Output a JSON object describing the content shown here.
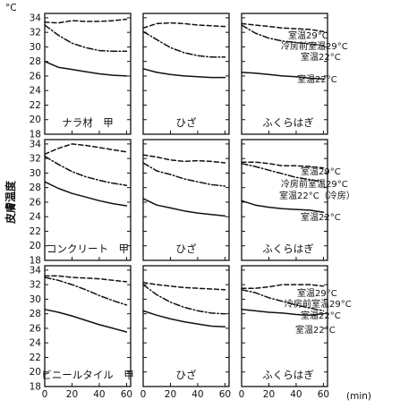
{
  "chart_data": {
    "type": "line",
    "y_unit": "°C",
    "y_label": "皮膚温度",
    "x_unit": "(min)",
    "yticks": [
      18,
      20,
      22,
      24,
      26,
      28,
      30,
      32,
      34
    ],
    "xticks": [
      0,
      20,
      40,
      60
    ],
    "ylim": [
      18,
      34.6
    ],
    "xlim": [
      0,
      63
    ],
    "rows": [
      {
        "material": "ナラ材",
        "panels": [
          {
            "title": "ナラ材　甲",
            "series": [
              {
                "style": "dashed",
                "x": [
                  0,
                  10,
                  20,
                  30,
                  40,
                  50,
                  60
                ],
                "y": [
                  33.4,
                  33.3,
                  33.6,
                  33.5,
                  33.5,
                  33.6,
                  33.8
                ]
              },
              {
                "style": "dashdot",
                "x": [
                  0,
                  10,
                  20,
                  30,
                  40,
                  50,
                  60
                ],
                "y": [
                  33.0,
                  31.6,
                  30.5,
                  29.9,
                  29.5,
                  29.4,
                  29.4
                ]
              },
              {
                "style": "solid",
                "x": [
                  0,
                  10,
                  20,
                  30,
                  40,
                  50,
                  60
                ],
                "y": [
                  28.0,
                  27.2,
                  26.9,
                  26.6,
                  26.3,
                  26.1,
                  26.0
                ]
              }
            ]
          },
          {
            "title": "ひざ",
            "series": [
              {
                "style": "dashed",
                "x": [
                  0,
                  10,
                  20,
                  30,
                  40,
                  50,
                  60
                ],
                "y": [
                  32.6,
                  33.2,
                  33.3,
                  33.2,
                  33.0,
                  32.9,
                  32.8
                ]
              },
              {
                "style": "dashdot",
                "x": [
                  0,
                  10,
                  20,
                  30,
                  40,
                  50,
                  60
                ],
                "y": [
                  32.1,
                  31.0,
                  29.9,
                  29.2,
                  28.8,
                  28.6,
                  28.6
                ]
              },
              {
                "style": "solid",
                "x": [
                  0,
                  10,
                  20,
                  30,
                  40,
                  50,
                  60
                ],
                "y": [
                  27.0,
                  26.5,
                  26.2,
                  26.0,
                  25.9,
                  25.8,
                  25.8
                ]
              }
            ]
          },
          {
            "title": "ふくらはぎ",
            "series": [
              {
                "style": "dashed",
                "x": [
                  0,
                  10,
                  20,
                  30,
                  40,
                  50,
                  60
                ],
                "y": [
                  33.2,
                  33.0,
                  32.8,
                  32.6,
                  32.5,
                  32.4,
                  32.1
                ]
              },
              {
                "style": "dashdot",
                "x": [
                  0,
                  10,
                  20,
                  30,
                  40,
                  50,
                  60
                ],
                "y": [
                  33.0,
                  31.9,
                  31.2,
                  30.8,
                  30.6,
                  30.4,
                  30.2
                ]
              },
              {
                "style": "solid",
                "x": [
                  0,
                  10,
                  20,
                  30,
                  40,
                  50,
                  60
                ],
                "y": [
                  26.5,
                  26.4,
                  26.2,
                  26.0,
                  25.9,
                  25.7,
                  25.6
                ]
              }
            ],
            "annotations": [
              "室温29°C",
              "冷房前室温29°C",
              "室温22°C",
              "室温22°C"
            ]
          }
        ]
      },
      {
        "material": "コンクリート",
        "panels": [
          {
            "title": "コンクリート　甲",
            "series": [
              {
                "style": "dashed",
                "x": [
                  0,
                  10,
                  20,
                  30,
                  40,
                  50,
                  60
                ],
                "y": [
                  32.6,
                  33.4,
                  34.0,
                  33.8,
                  33.5,
                  33.2,
                  32.9
                ]
              },
              {
                "style": "dashdot",
                "x": [
                  0,
                  10,
                  20,
                  30,
                  40,
                  50,
                  60
                ],
                "y": [
                  32.3,
                  31.2,
                  30.2,
                  29.5,
                  29.0,
                  28.6,
                  28.3
                ]
              },
              {
                "style": "solid",
                "x": [
                  0,
                  10,
                  20,
                  30,
                  40,
                  50,
                  60
                ],
                "y": [
                  28.8,
                  27.9,
                  27.2,
                  26.7,
                  26.2,
                  25.8,
                  25.5
                ]
              }
            ]
          },
          {
            "title": "ひざ",
            "series": [
              {
                "style": "dashed",
                "x": [
                  0,
                  10,
                  20,
                  30,
                  40,
                  50,
                  60
                ],
                "y": [
                  32.5,
                  32.2,
                  31.8,
                  31.6,
                  31.7,
                  31.6,
                  31.4
                ]
              },
              {
                "style": "dashdot",
                "x": [
                  0,
                  10,
                  20,
                  30,
                  40,
                  50,
                  60
                ],
                "y": [
                  31.4,
                  30.3,
                  29.8,
                  29.2,
                  28.8,
                  28.4,
                  28.2
                ]
              },
              {
                "style": "solid",
                "x": [
                  0,
                  10,
                  20,
                  30,
                  40,
                  50,
                  60
                ],
                "y": [
                  26.5,
                  25.6,
                  25.2,
                  24.8,
                  24.5,
                  24.3,
                  24.1
                ]
              }
            ]
          },
          {
            "title": "ふくらはぎ",
            "series": [
              {
                "style": "dashed",
                "x": [
                  0,
                  10,
                  20,
                  30,
                  40,
                  50,
                  60
                ],
                "y": [
                  31.5,
                  31.5,
                  31.3,
                  31.0,
                  31.0,
                  30.9,
                  30.7
                ]
              },
              {
                "style": "dashdot",
                "x": [
                  0,
                  10,
                  20,
                  30,
                  40,
                  50,
                  60
                ],
                "y": [
                  31.3,
                  30.9,
                  30.4,
                  29.9,
                  29.4,
                  29.1,
                  28.8
                ]
              },
              {
                "style": "solid",
                "x": [
                  0,
                  10,
                  20,
                  30,
                  40,
                  50,
                  60
                ],
                "y": [
                  26.2,
                  25.6,
                  25.3,
                  25.1,
                  25.0,
                  24.9,
                  24.6
                ]
              }
            ],
            "annotations": [
              "室温29°C",
              "冷房前室温29°C",
              "室温22°C（冷房）",
              "室温22°C"
            ]
          }
        ]
      },
      {
        "material": "ビニールタイル",
        "panels": [
          {
            "title": "ビニールタイル　甲",
            "series": [
              {
                "style": "dashed",
                "x": [
                  0,
                  10,
                  20,
                  30,
                  40,
                  50,
                  60
                ],
                "y": [
                  33.2,
                  33.2,
                  33.0,
                  32.9,
                  32.8,
                  32.6,
                  32.4
                ]
              },
              {
                "style": "dashdot",
                "x": [
                  0,
                  10,
                  20,
                  30,
                  40,
                  50,
                  60
                ],
                "y": [
                  33.0,
                  32.6,
                  32.0,
                  31.3,
                  30.5,
                  29.8,
                  29.2
                ]
              },
              {
                "style": "solid",
                "x": [
                  0,
                  10,
                  20,
                  30,
                  40,
                  50,
                  60
                ],
                "y": [
                  28.6,
                  28.2,
                  27.7,
                  27.1,
                  26.5,
                  26.0,
                  25.5
                ]
              }
            ]
          },
          {
            "title": "ひざ",
            "series": [
              {
                "style": "dashed",
                "x": [
                  0,
                  10,
                  20,
                  30,
                  40,
                  50,
                  60
                ],
                "y": [
                  32.3,
                  32.0,
                  31.8,
                  31.6,
                  31.5,
                  31.4,
                  31.3
                ]
              },
              {
                "style": "dashdot",
                "x": [
                  0,
                  10,
                  20,
                  30,
                  40,
                  50,
                  60
                ],
                "y": [
                  32.0,
                  30.6,
                  29.6,
                  28.9,
                  28.4,
                  28.1,
                  28.0
                ]
              },
              {
                "style": "solid",
                "x": [
                  0,
                  10,
                  20,
                  30,
                  40,
                  50,
                  60
                ],
                "y": [
                  28.4,
                  27.8,
                  27.3,
                  26.9,
                  26.6,
                  26.3,
                  26.2
                ]
              }
            ]
          },
          {
            "title": "ふくらはぎ",
            "series": [
              {
                "style": "dashed",
                "x": [
                  0,
                  10,
                  20,
                  30,
                  40,
                  50,
                  60
                ],
                "y": [
                  31.5,
                  31.5,
                  31.7,
                  32.0,
                  32.0,
                  32.0,
                  31.8
                ]
              },
              {
                "style": "dashdot",
                "x": [
                  0,
                  10,
                  20,
                  30,
                  40,
                  50,
                  60
                ],
                "y": [
                  31.3,
                  30.9,
                  30.2,
                  29.7,
                  29.2,
                  28.8,
                  28.4
                ]
              },
              {
                "style": "solid",
                "x": [
                  0,
                  10,
                  20,
                  30,
                  40,
                  50,
                  60
                ],
                "y": [
                  28.6,
                  28.4,
                  28.2,
                  28.1,
                  27.9,
                  27.8,
                  28.0
                ]
              }
            ],
            "annotations": [
              "室温29°C",
              "冷房前室温29°C",
              "室温22°C",
              "室温22°C"
            ]
          }
        ]
      }
    ]
  }
}
